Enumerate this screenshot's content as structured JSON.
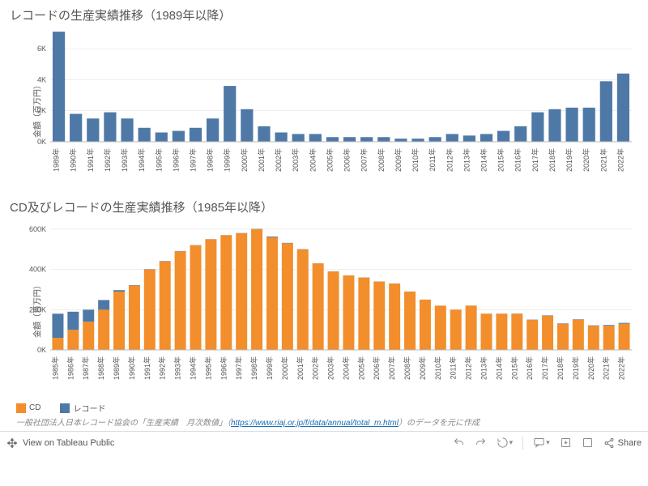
{
  "chart1": {
    "title": "レコードの生産実績推移（1989年以降）",
    "type": "bar",
    "ylabel": "金額（百万円）",
    "ylim": [
      0,
      7000
    ],
    "yticks": [
      0,
      2000,
      4000,
      6000
    ],
    "ytick_labels": [
      "0K",
      "2K",
      "4K",
      "6K"
    ],
    "bar_color": "#4e79a7",
    "background_color": "#ffffff",
    "grid_color": "#dddddd",
    "axis_color": "#bbbbbb",
    "label_fontsize": 9,
    "title_fontsize": 15,
    "categories": [
      "1989年",
      "1990年",
      "1991年",
      "1992年",
      "1993年",
      "1994年",
      "1995年",
      "1996年",
      "1997年",
      "1998年",
      "1999年",
      "2000年",
      "2001年",
      "2002年",
      "2003年",
      "2004年",
      "2005年",
      "2006年",
      "2007年",
      "2008年",
      "2009年",
      "2010年",
      "2011年",
      "2012年",
      "2013年",
      "2014年",
      "2015年",
      "2016年",
      "2017年",
      "2018年",
      "2019年",
      "2020年",
      "2021年",
      "2022年"
    ],
    "values": [
      7100,
      1800,
      1500,
      1900,
      1500,
      900,
      600,
      700,
      900,
      1500,
      3600,
      2100,
      1000,
      600,
      500,
      500,
      300,
      300,
      300,
      300,
      200,
      200,
      300,
      500,
      400,
      500,
      700,
      1000,
      1900,
      2100,
      2200,
      2200,
      3900,
      4400
    ]
  },
  "chart2": {
    "title": "CD及びレコードの生産実績推移（1985年以降）",
    "type": "stacked-bar",
    "ylabel": "金額（百万円）",
    "ylim": [
      0,
      620000
    ],
    "yticks": [
      0,
      200000,
      400000,
      600000
    ],
    "ytick_labels": [
      "0K",
      "200K",
      "400K",
      "600K"
    ],
    "background_color": "#ffffff",
    "grid_color": "#dddddd",
    "axis_color": "#bbbbbb",
    "label_fontsize": 9,
    "title_fontsize": 15,
    "categories": [
      "1985年",
      "1986年",
      "1987年",
      "1988年",
      "1989年",
      "1990年",
      "1991年",
      "1992年",
      "1993年",
      "1994年",
      "1995年",
      "1996年",
      "1997年",
      "1998年",
      "1999年",
      "2000年",
      "2001年",
      "2002年",
      "2003年",
      "2004年",
      "2005年",
      "2006年",
      "2007年",
      "2008年",
      "2009年",
      "2010年",
      "2011年",
      "2012年",
      "2013年",
      "2014年",
      "2015年",
      "2016年",
      "2017年",
      "2018年",
      "2019年",
      "2020年",
      "2021年",
      "2022年"
    ],
    "series": [
      {
        "name": "CD",
        "color": "#f28e2b",
        "values": [
          60000,
          100000,
          140000,
          200000,
          290000,
          320000,
          400000,
          440000,
          490000,
          520000,
          550000,
          570000,
          580000,
          600000,
          560000,
          530000,
          500000,
          430000,
          390000,
          370000,
          360000,
          340000,
          330000,
          290000,
          250000,
          220000,
          200000,
          220000,
          180000,
          180000,
          180000,
          150000,
          170000,
          130000,
          150000,
          120000,
          120000,
          130000
        ]
      },
      {
        "name": "レコード",
        "color": "#4e79a7",
        "values": [
          120000,
          90000,
          60000,
          48000,
          7100,
          1800,
          1500,
          1900,
          1500,
          900,
          600,
          700,
          900,
          1500,
          3600,
          2100,
          1000,
          600,
          500,
          500,
          300,
          300,
          300,
          300,
          200,
          200,
          300,
          500,
          400,
          500,
          700,
          1000,
          1900,
          2100,
          2200,
          2200,
          3900,
          4400
        ]
      }
    ]
  },
  "legend": {
    "items": [
      {
        "label": "CD",
        "color": "#f28e2b"
      },
      {
        "label": "レコード",
        "color": "#4e79a7"
      }
    ]
  },
  "source": {
    "prefix": "一般社団法人日本レコード協会の「生産実績　月次数値」（",
    "link_text": "https://www.riaj.or.jp/f/data/annual/total_m.html",
    "link_href": "https://www.riaj.or.jp/f/data/annual/total_m.html",
    "suffix": "）のデータを元に作成"
  },
  "footer": {
    "view_label": "View on Tableau Public",
    "share_label": "Share"
  }
}
